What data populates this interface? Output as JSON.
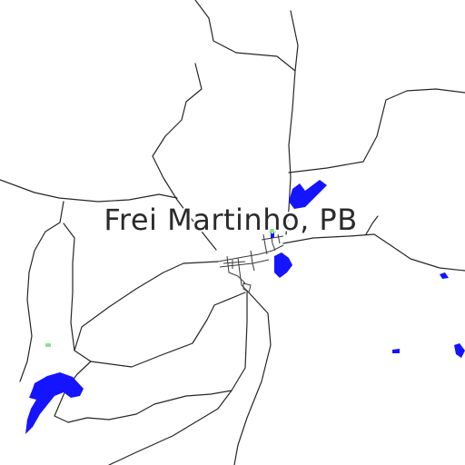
{
  "map": {
    "place_label": "Frei Martinho, PB",
    "colors": {
      "background": "#ffffff",
      "road": "#262626",
      "water": "#1414ff",
      "park": "#8fe08f"
    }
  }
}
